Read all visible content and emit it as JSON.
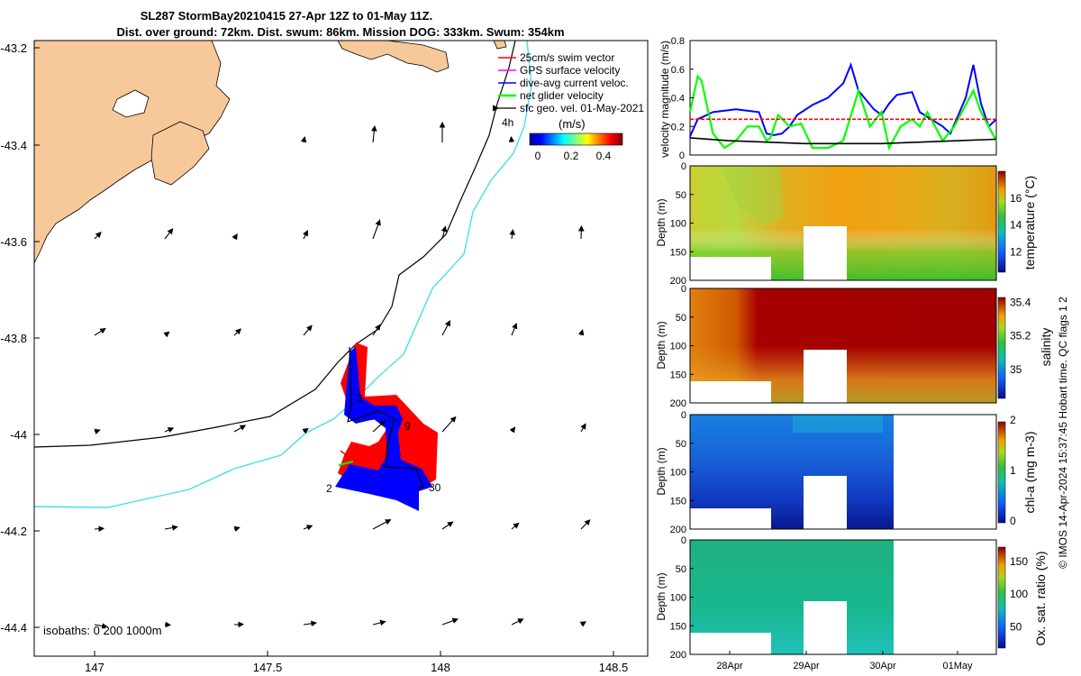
{
  "title": {
    "line1": "SL287 StormBay20210415 27-Apr 12Z to 01-May 11Z.",
    "line2": "Dist. over ground: 72km. Dist. swum: 86km. Mission DOG: 333km. Swum: 354km"
  },
  "map": {
    "xticks": [
      "147",
      "147.5",
      "148",
      "148.5"
    ],
    "yticks": [
      "-43.2",
      "-43.4",
      "-43.6",
      "-43.8",
      "-44",
      "-44.2",
      "-44.4"
    ],
    "legend": [
      {
        "label": "25cm/s swim vector",
        "color": "#ff0000"
      },
      {
        "label": "GPS surface velocity",
        "color": "#ff00ff"
      },
      {
        "label": "dive-avg current veloc.",
        "color": "#0000ff"
      },
      {
        "label": "net glider velocity",
        "color": "#00ff00"
      },
      {
        "label": "sfc geo. vel. 01-May-2021",
        "color": "#000000"
      }
    ],
    "scale_label": "4h",
    "colorbar_title": "(m/s)",
    "colorbar_ticks": [
      "0",
      "0.2",
      "0.4"
    ],
    "isobaths_label": "isobaths: 0   200  1000m",
    "track_labels": [
      "2",
      "9",
      "2",
      "30"
    ]
  },
  "chart_data": [
    {
      "type": "line",
      "title": "",
      "ylabel": "velocity magnitude (m/s)",
      "ylim": [
        0,
        0.8
      ],
      "yticks": [
        "0",
        "0.2",
        "0.4",
        "0.6",
        "0.8"
      ],
      "x_unit": "days since 27-Apr 12Z",
      "xlim": [
        0,
        4
      ],
      "series": [
        {
          "name": "dive-avg current",
          "color": "#0000ff",
          "x": [
            0,
            0.1,
            0.3,
            0.6,
            0.9,
            1.0,
            1.1,
            1.2,
            1.3,
            1.4,
            1.6,
            1.8,
            2.0,
            2.1,
            2.2,
            2.4,
            2.5,
            2.6,
            2.7,
            2.9,
            3.0,
            3.3,
            3.4,
            3.6,
            3.7,
            3.8,
            3.9,
            4.0
          ],
          "y": [
            0.13,
            0.25,
            0.3,
            0.32,
            0.3,
            0.15,
            0.14,
            0.15,
            0.2,
            0.28,
            0.35,
            0.4,
            0.5,
            0.63,
            0.45,
            0.32,
            0.28,
            0.36,
            0.42,
            0.44,
            0.3,
            0.2,
            0.15,
            0.4,
            0.63,
            0.36,
            0.2,
            0.25
          ]
        },
        {
          "name": "net glider velocity",
          "color": "#00ff00",
          "x": [
            0,
            0.1,
            0.15,
            0.3,
            0.45,
            0.6,
            0.75,
            0.9,
            1.0,
            1.05,
            1.15,
            1.3,
            1.45,
            1.6,
            1.8,
            2.0,
            2.2,
            2.35,
            2.5,
            2.6,
            2.75,
            2.9,
            3.0,
            3.1,
            3.3,
            3.45,
            3.55,
            3.7,
            3.8,
            3.9,
            4.0
          ],
          "y": [
            0.3,
            0.55,
            0.52,
            0.15,
            0.05,
            0.1,
            0.2,
            0.2,
            0.1,
            0.12,
            0.28,
            0.2,
            0.22,
            0.05,
            0.05,
            0.1,
            0.45,
            0.2,
            0.3,
            0.05,
            0.2,
            0.25,
            0.2,
            0.3,
            0.1,
            0.2,
            0.3,
            0.45,
            0.3,
            0.2,
            0.1
          ]
        },
        {
          "name": "25cm/s swim vector",
          "color": "#ff0000",
          "x": [
            0,
            4
          ],
          "y": [
            0.25,
            0.25
          ]
        },
        {
          "name": "sfc geo. vel.",
          "color": "#000000",
          "x": [
            0,
            0.5,
            1.0,
            1.5,
            2.0,
            2.5,
            3.0,
            3.5,
            4.0
          ],
          "y": [
            0.12,
            0.1,
            0.09,
            0.08,
            0.08,
            0.08,
            0.09,
            0.1,
            0.11
          ]
        }
      ]
    },
    {
      "type": "heatmap",
      "variable": "temperature (°C)",
      "ylabel": "Depth (m)",
      "ylim": [
        200,
        0
      ],
      "yticks": [
        "0",
        "50",
        "100",
        "150",
        "200"
      ],
      "colorbar_range": [
        10.5,
        18
      ],
      "colorbar_ticks": [
        "12",
        "14",
        "16"
      ]
    },
    {
      "type": "heatmap",
      "variable": "salinity",
      "ylabel": "Depth (m)",
      "ylim": [
        200,
        0
      ],
      "yticks": [
        "0",
        "50",
        "100",
        "150",
        "200"
      ],
      "colorbar_range": [
        34.85,
        35.45
      ],
      "colorbar_ticks": [
        "35",
        "35.2",
        "35.4"
      ]
    },
    {
      "type": "heatmap",
      "variable": "chl-a (mg m-3)",
      "ylabel": "Depth (m)",
      "ylim": [
        200,
        0
      ],
      "yticks": [
        "0",
        "50",
        "100",
        "150",
        "200"
      ],
      "colorbar_range": [
        0,
        2
      ],
      "colorbar_ticks": [
        "0",
        "1",
        "2"
      ]
    },
    {
      "type": "heatmap",
      "variable": "Ox. sat. ratio (%)",
      "ylabel": "Depth (m)",
      "ylim": [
        200,
        0
      ],
      "yticks": [
        "0",
        "50",
        "100",
        "150",
        "200"
      ],
      "colorbar_range": [
        20,
        175
      ],
      "colorbar_ticks": [
        "50",
        "100",
        "150"
      ],
      "xticks": [
        "28Apr",
        "29Apr",
        "30Apr",
        "01May"
      ]
    }
  ],
  "credit": "© IMOS 14-Apr-2024 15:37:45 Hobart time. QC flags 1  2"
}
